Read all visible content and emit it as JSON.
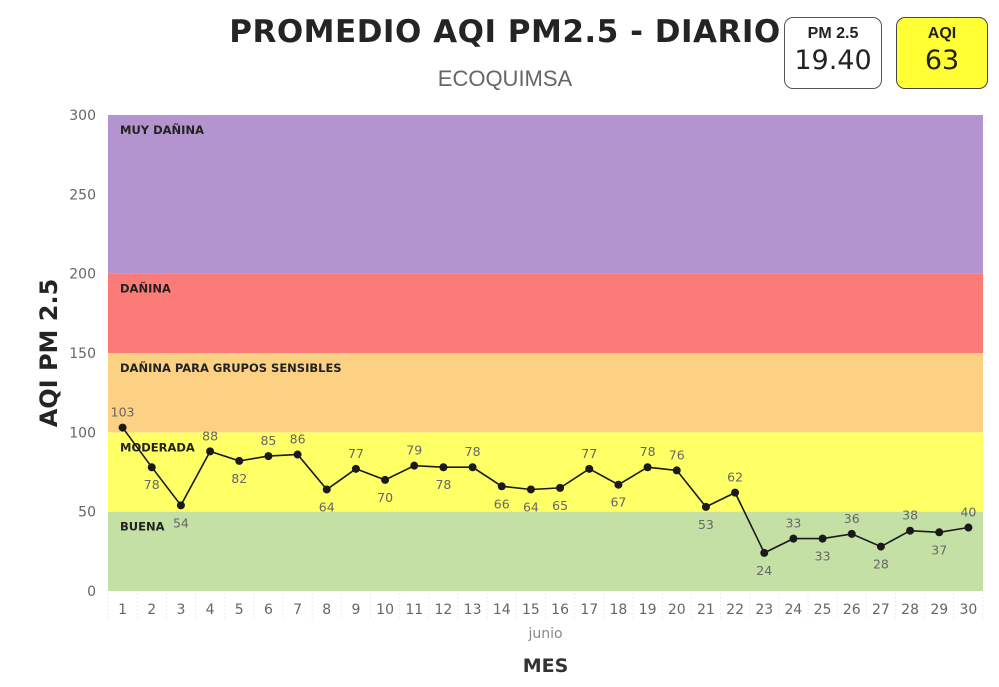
{
  "header": {
    "title": "PROMEDIO AQI PM2.5 - DIARIO",
    "subtitle": "ECOQUIMSA"
  },
  "cards": {
    "pm_label": "PM 2.5",
    "pm_value": "19.40",
    "aqi_label": "AQI",
    "aqi_value": "63",
    "aqi_color": "#ffff33"
  },
  "chart_data": {
    "type": "line",
    "xlabel": "MES",
    "ylabel": "AQI PM 2.5",
    "x_group_label": "junio",
    "ylim": [
      0,
      300
    ],
    "yticks": [
      0,
      50,
      100,
      150,
      200,
      250,
      300
    ],
    "x": [
      1,
      2,
      3,
      4,
      5,
      6,
      7,
      8,
      9,
      10,
      11,
      12,
      13,
      14,
      15,
      16,
      17,
      18,
      19,
      20,
      21,
      22,
      23,
      24,
      25,
      26,
      27,
      28,
      29,
      30
    ],
    "series": [
      {
        "values": [
          103,
          78,
          54,
          88,
          82,
          85,
          86,
          64,
          77,
          70,
          79,
          78,
          78,
          66,
          64,
          65,
          77,
          67,
          78,
          76,
          53,
          62,
          24,
          33,
          33,
          36,
          28,
          38,
          37,
          40
        ],
        "color": "#1a1a1a"
      }
    ],
    "bands": [
      {
        "label": "BUENA",
        "from": 0,
        "to": 50,
        "color": "#c5e0a5"
      },
      {
        "label": "MODERADA",
        "from": 50,
        "to": 100,
        "color": "#ffff66"
      },
      {
        "label": "DAÑINA PARA GRUPOS SENSIBLES",
        "from": 100,
        "to": 150,
        "color": "#fdd184"
      },
      {
        "label": "DAÑINA",
        "from": 150,
        "to": 200,
        "color": "#fb7b79"
      },
      {
        "label": "MUY DAÑINA",
        "from": 200,
        "to": 300,
        "color": "#b394cf"
      }
    ],
    "legend": "none",
    "grid": false
  }
}
